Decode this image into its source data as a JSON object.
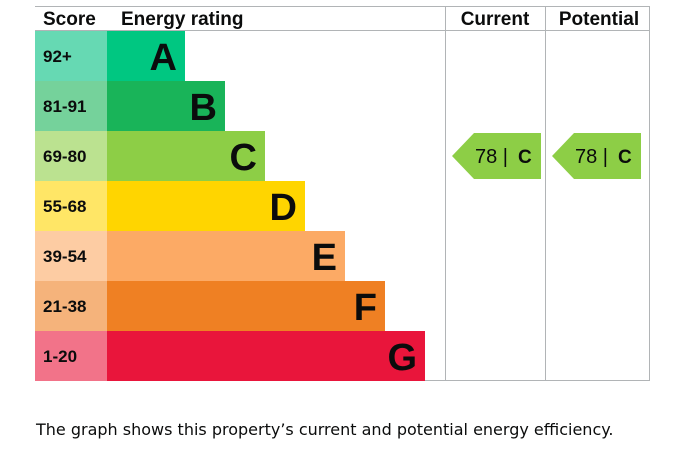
{
  "header": {
    "score": "Score",
    "rating": "Energy rating",
    "current": "Current",
    "potential": "Potential"
  },
  "chart_data": {
    "type": "bar",
    "categories": [
      "A",
      "B",
      "C",
      "D",
      "E",
      "F",
      "G"
    ],
    "score_ranges": [
      "92+",
      "81-91",
      "69-80",
      "55-68",
      "39-54",
      "21-38",
      "1-20"
    ],
    "bands": [
      {
        "letter": "A",
        "range": "92+",
        "bar_color": "#00c781",
        "score_color": "#66d9b3"
      },
      {
        "letter": "B",
        "range": "81-91",
        "bar_color": "#19b459",
        "score_color": "#75d29b"
      },
      {
        "letter": "C",
        "range": "69-80",
        "bar_color": "#8dce46",
        "score_color": "#bbe290"
      },
      {
        "letter": "D",
        "range": "55-68",
        "bar_color": "#ffd500",
        "score_color": "#ffe666"
      },
      {
        "letter": "E",
        "range": "39-54",
        "bar_color": "#fcaa65",
        "score_color": "#fdcca3"
      },
      {
        "letter": "F",
        "range": "21-38",
        "bar_color": "#ef8023",
        "score_color": "#f5b37b"
      },
      {
        "letter": "G",
        "range": "1-20",
        "bar_color": "#e9153b",
        "score_color": "#f27389"
      }
    ],
    "current": {
      "score": "78",
      "band": "C",
      "label": "78 |",
      "letter": "C",
      "color": "#8dce46"
    },
    "potential": {
      "score": "78",
      "band": "C",
      "label": "78 |",
      "letter": "C",
      "color": "#8dce46"
    }
  },
  "caption": "The graph shows this property’s current and potential energy efficiency."
}
